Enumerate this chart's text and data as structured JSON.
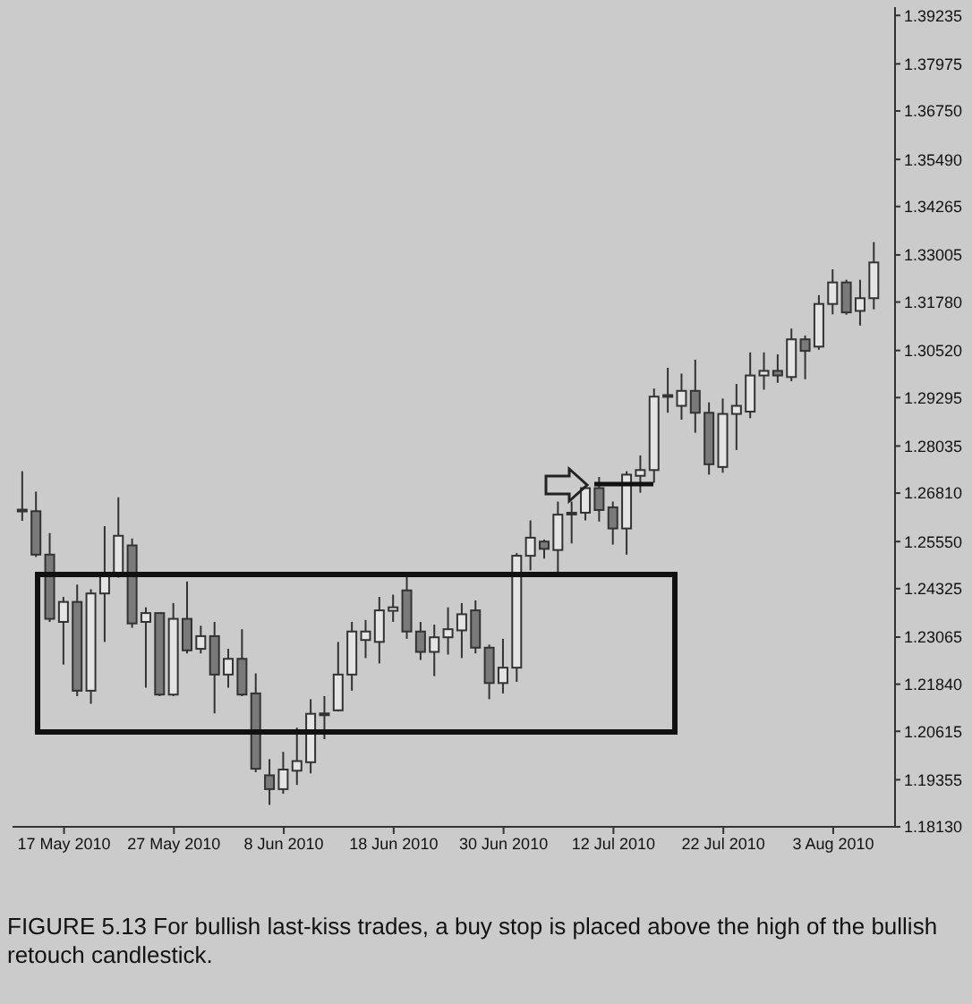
{
  "chart_data": {
    "type": "candlestick",
    "categories": [
      null,
      null,
      null,
      "17 May 2010",
      null,
      null,
      null,
      null,
      null,
      null,
      null,
      "27 May 2010",
      null,
      null,
      null,
      null,
      null,
      null,
      null,
      "8 Jun 2010",
      null,
      null,
      null,
      null,
      null,
      null,
      null,
      "18 Jun 2010",
      null,
      null,
      null,
      null,
      null,
      null,
      null,
      "30 Jun 2010",
      null,
      null,
      null,
      null,
      null,
      null,
      null,
      "12 Jul 2010",
      null,
      null,
      null,
      null,
      null,
      null,
      null,
      "22 Jul 2010",
      null,
      null,
      null,
      null,
      null,
      null,
      null,
      "3 Aug 2010",
      null,
      null,
      null
    ],
    "ohlc": [
      [
        1.2638,
        1.2738,
        1.2609,
        1.2634
      ],
      [
        1.2634,
        1.2685,
        1.2515,
        1.2521
      ],
      [
        1.2521,
        1.2577,
        1.2346,
        1.2354
      ],
      [
        1.2346,
        1.2411,
        1.2235,
        1.2398
      ],
      [
        1.2398,
        1.2443,
        1.2153,
        1.2167
      ],
      [
        1.2167,
        1.2431,
        1.2133,
        1.242
      ],
      [
        1.242,
        1.2595,
        1.2294,
        1.2466
      ],
      [
        1.2466,
        1.267,
        1.2461,
        1.257
      ],
      [
        1.2545,
        1.2563,
        1.2331,
        1.2342
      ],
      [
        1.2346,
        1.2384,
        1.2175,
        1.2369
      ],
      [
        1.2369,
        1.2369,
        1.2153,
        1.2157
      ],
      [
        1.2157,
        1.2395,
        1.2153,
        1.2354
      ],
      [
        1.2354,
        1.2451,
        1.2264,
        1.2272
      ],
      [
        1.2276,
        1.2336,
        1.2264,
        1.2309
      ],
      [
        1.2309,
        1.2346,
        1.2108,
        1.2209
      ],
      [
        1.2209,
        1.2276,
        1.2175,
        1.225
      ],
      [
        1.225,
        1.2327,
        1.2153,
        1.2157
      ],
      [
        1.216,
        1.2212,
        1.1955,
        1.1964
      ],
      [
        1.1947,
        1.1989,
        1.187,
        1.1911
      ],
      [
        1.1911,
        1.2008,
        1.1899,
        1.1962
      ],
      [
        1.1959,
        1.2071,
        1.1922,
        1.1984
      ],
      [
        1.1981,
        1.2145,
        1.1952,
        1.2107
      ],
      [
        1.2108,
        1.2153,
        1.2041,
        1.2105
      ],
      [
        1.2116,
        1.2294,
        1.2113,
        1.2209
      ],
      [
        1.2209,
        1.2346,
        1.2167,
        1.2321
      ],
      [
        1.2299,
        1.2351,
        1.2252,
        1.2321
      ],
      [
        1.2294,
        1.2411,
        1.2238,
        1.2376
      ],
      [
        1.2375,
        1.2417,
        1.2346,
        1.2384
      ],
      [
        1.2428,
        1.247,
        1.2302,
        1.2321
      ],
      [
        1.2321,
        1.2346,
        1.2247,
        1.2268
      ],
      [
        1.2268,
        1.2339,
        1.2205,
        1.2306
      ],
      [
        1.2306,
        1.2384,
        1.2261,
        1.2327
      ],
      [
        1.2324,
        1.2395,
        1.2252,
        1.2366
      ],
      [
        1.2376,
        1.2402,
        1.2264,
        1.2279
      ],
      [
        1.2279,
        1.2287,
        1.2145,
        1.2187
      ],
      [
        1.2187,
        1.2302,
        1.216,
        1.2227
      ],
      [
        1.2227,
        1.2525,
        1.219,
        1.2518
      ],
      [
        1.2518,
        1.261,
        1.248,
        1.2565
      ],
      [
        1.2555,
        1.256,
        1.2511,
        1.2536
      ],
      [
        1.2533,
        1.2659,
        1.2476,
        1.2625
      ],
      [
        1.2628,
        1.2659,
        1.255,
        1.263
      ],
      [
        1.263,
        1.2699,
        1.261,
        1.2694
      ],
      [
        1.2694,
        1.2723,
        1.2607,
        1.2637
      ],
      [
        1.2644,
        1.2659,
        1.2547,
        1.2589
      ],
      [
        1.2589,
        1.2738,
        1.2521,
        1.2729
      ],
      [
        1.2726,
        1.2779,
        1.2682,
        1.2741
      ],
      [
        1.2741,
        1.2953,
        1.2708,
        1.2932
      ],
      [
        1.2933,
        1.3007,
        1.289,
        1.2936
      ],
      [
        1.2908,
        1.2992,
        1.2872,
        1.2947
      ],
      [
        1.2947,
        1.3028,
        1.2838,
        1.289
      ],
      [
        1.289,
        1.2917,
        1.2729,
        1.2756
      ],
      [
        1.2749,
        1.2927,
        1.2734,
        1.2887
      ],
      [
        1.2887,
        1.2965,
        1.2793,
        1.2908
      ],
      [
        1.2893,
        1.3047,
        1.2876,
        1.2987
      ],
      [
        1.2987,
        1.3047,
        1.295,
        1.2999
      ],
      [
        1.2999,
        1.3042,
        1.2968,
        1.2987
      ],
      [
        1.2983,
        1.3109,
        1.2972,
        1.3081
      ],
      [
        1.3081,
        1.3091,
        1.2977,
        1.3051
      ],
      [
        1.3062,
        1.3196,
        1.3054,
        1.3173
      ],
      [
        1.3173,
        1.3263,
        1.3146,
        1.3229
      ],
      [
        1.3229,
        1.3236,
        1.3145,
        1.3151
      ],
      [
        1.3155,
        1.3236,
        1.3117,
        1.3188
      ],
      [
        1.3188,
        1.3334,
        1.3159,
        1.3281
      ]
    ],
    "ylim": [
      1.1813,
      1.3945
    ],
    "yticks": [
      {
        "value": 1.1813,
        "label": "1.18130"
      },
      1.19355,
      1.20615,
      {
        "value": 1.2184,
        "label": "1.21840"
      },
      1.23065,
      1.24325,
      {
        "value": 1.2555,
        "label": "1.25550"
      },
      {
        "value": 1.2681,
        "label": "1.26810"
      },
      1.28035,
      1.29295,
      {
        "value": 1.3052,
        "label": "1.30520"
      },
      {
        "value": 1.3178,
        "label": "1.31780"
      },
      1.33005,
      1.34265,
      {
        "value": 1.3549,
        "label": "1.35490"
      },
      {
        "value": 1.3675,
        "label": "1.36750"
      },
      1.37975,
      1.39235
    ],
    "annotations": [
      "FIGURE 5.13 For bullish last-kiss trades, a buy stop is placed above the high of the bullish retouch candlestick."
    ]
  }
}
